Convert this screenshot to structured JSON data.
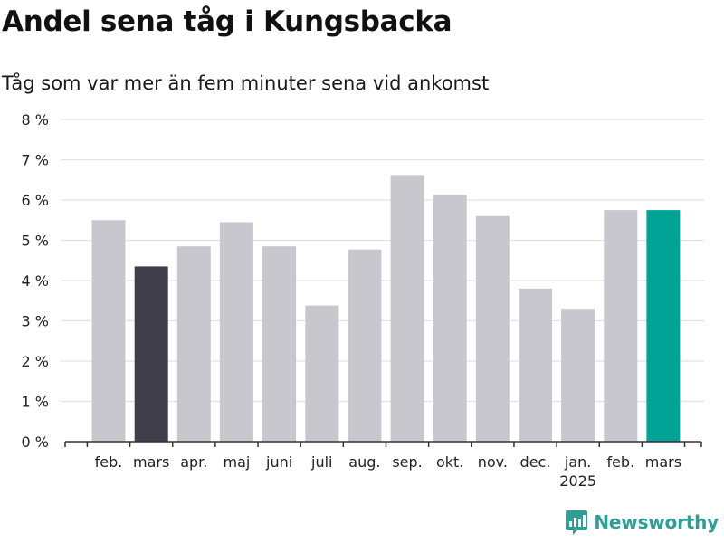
{
  "chart_data": {
    "type": "bar",
    "title": "Andel sena tåg i Kungsbacka",
    "subtitle": "Tåg som var mer än fem minuter sena vid ankomst",
    "categories": [
      "feb.",
      "mars",
      "apr.",
      "maj",
      "juni",
      "juli",
      "aug.",
      "sep.",
      "okt.",
      "nov.",
      "dec.",
      "jan.",
      "feb.",
      "mars"
    ],
    "year_labels": [
      "",
      "",
      "",
      "",
      "",
      "",
      "",
      "",
      "",
      "",
      "",
      "2025",
      "",
      ""
    ],
    "values": [
      5.5,
      4.35,
      4.85,
      5.45,
      4.85,
      3.38,
      4.77,
      6.62,
      6.13,
      5.6,
      3.8,
      3.3,
      5.75,
      5.75
    ],
    "highlight_colors": [
      "#c8c7cd",
      "#403e4b",
      "#c8c7cd",
      "#c8c7cd",
      "#c8c7cd",
      "#c8c7cd",
      "#c8c7cd",
      "#c8c7cd",
      "#c8c7cd",
      "#c8c7cd",
      "#c8c7cd",
      "#c8c7cd",
      "#c8c7cd",
      "#00a396"
    ],
    "ylim": [
      0,
      8
    ],
    "yticks": [
      0,
      1,
      2,
      3,
      4,
      5,
      6,
      7,
      8
    ],
    "ytick_suffix": " %",
    "grid": true,
    "legend": "none"
  },
  "branding": {
    "name": "Newsworthy",
    "icon": "newsworthy-logo-icon",
    "color": "#2f9e93"
  }
}
